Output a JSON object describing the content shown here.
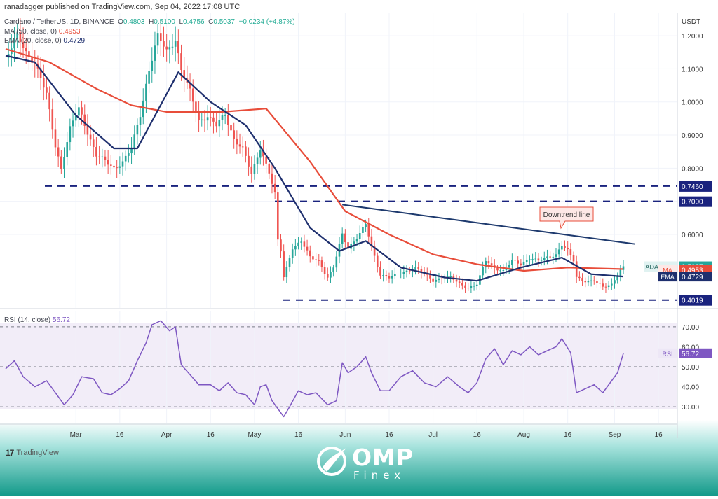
{
  "header": {
    "published": "ranadagger published on TradingView.com, Sep 04, 2022 17:08 UTC",
    "symbol_line": "Cardano / TetherUS, 1D, BINANCE",
    "ohlc": {
      "o_label": "O",
      "o": "0.4803",
      "h_label": "H",
      "h": "0.5100",
      "l_label": "L",
      "l": "0.4756",
      "c_label": "C",
      "c": "0.5037",
      "change": "+0.0234 (+4.87%)"
    }
  },
  "indicators": {
    "ma": {
      "label": "MA (50, close, 0)",
      "value": "0.4953",
      "color": "#e84d3a"
    },
    "ema": {
      "label": "EMA (20, close, 0)",
      "value": "0.4729",
      "color": "#1e2f6e"
    },
    "rsi": {
      "label": "RSI (14, close)",
      "value": "56.72",
      "color": "#7e57c2"
    }
  },
  "chart_data": [
    {
      "type": "candlestick",
      "currency": "USDT",
      "ylim": [
        0.378,
        1.27
      ],
      "y_ticks": [
        0.6,
        0.7,
        0.8,
        0.9,
        1.0,
        1.1,
        1.2
      ],
      "y_tick_labels": [
        "0.6000",
        "0.7000",
        "0.8000",
        "0.9000",
        "1.0000",
        "1.1000",
        "1.2000"
      ],
      "x_ticks": [
        {
          "date": "2022-03-01",
          "label": "Mar"
        },
        {
          "date": "2022-03-16",
          "label": "16"
        },
        {
          "date": "2022-04-01",
          "label": "Apr"
        },
        {
          "date": "2022-04-16",
          "label": "16"
        },
        {
          "date": "2022-05-01",
          "label": "May"
        },
        {
          "date": "2022-05-16",
          "label": "16"
        },
        {
          "date": "2022-06-01",
          "label": "Jun"
        },
        {
          "date": "2022-06-16",
          "label": "16"
        },
        {
          "date": "2022-07-01",
          "label": "Jul"
        },
        {
          "date": "2022-07-16",
          "label": "16"
        },
        {
          "date": "2022-08-01",
          "label": "Aug"
        },
        {
          "date": "2022-08-16",
          "label": "16"
        },
        {
          "date": "2022-09-01",
          "label": "Sep"
        },
        {
          "date": "2022-09-16",
          "label": "16"
        }
      ],
      "close_path": [
        [
          "2022-02-05",
          1.13
        ],
        [
          "2022-02-09",
          1.2
        ],
        [
          "2022-02-12",
          1.15
        ],
        [
          "2022-02-15",
          1.12
        ],
        [
          "2022-02-19",
          1.02
        ],
        [
          "2022-02-22",
          0.87
        ],
        [
          "2022-02-24",
          0.8
        ],
        [
          "2022-02-27",
          0.92
        ],
        [
          "2022-03-02",
          0.98
        ],
        [
          "2022-03-05",
          0.91
        ],
        [
          "2022-03-08",
          0.84
        ],
        [
          "2022-03-11",
          0.82
        ],
        [
          "2022-03-14",
          0.8
        ],
        [
          "2022-03-17",
          0.82
        ],
        [
          "2022-03-20",
          0.86
        ],
        [
          "2022-03-23",
          0.96
        ],
        [
          "2022-03-26",
          1.1
        ],
        [
          "2022-03-29",
          1.2
        ],
        [
          "2022-04-01",
          1.15
        ],
        [
          "2022-04-04",
          1.19
        ],
        [
          "2022-04-06",
          1.1
        ],
        [
          "2022-04-09",
          1.03
        ],
        [
          "2022-04-12",
          0.94
        ],
        [
          "2022-04-15",
          0.96
        ],
        [
          "2022-04-18",
          0.93
        ],
        [
          "2022-04-21",
          0.96
        ],
        [
          "2022-04-24",
          0.89
        ],
        [
          "2022-04-27",
          0.86
        ],
        [
          "2022-04-30",
          0.78
        ],
        [
          "2022-05-03",
          0.86
        ],
        [
          "2022-05-06",
          0.79
        ],
        [
          "2022-05-08",
          0.72
        ],
        [
          "2022-05-09",
          0.58
        ],
        [
          "2022-05-10",
          0.55
        ],
        [
          "2022-05-11",
          0.47
        ],
        [
          "2022-05-12",
          0.5
        ],
        [
          "2022-05-14",
          0.56
        ],
        [
          "2022-05-17",
          0.58
        ],
        [
          "2022-05-20",
          0.53
        ],
        [
          "2022-05-23",
          0.52
        ],
        [
          "2022-05-26",
          0.47
        ],
        [
          "2022-05-28",
          0.5
        ],
        [
          "2022-05-31",
          0.6
        ],
        [
          "2022-06-02",
          0.56
        ],
        [
          "2022-06-05",
          0.59
        ],
        [
          "2022-06-08",
          0.63
        ],
        [
          "2022-06-10",
          0.56
        ],
        [
          "2022-06-13",
          0.48
        ],
        [
          "2022-06-16",
          0.47
        ],
        [
          "2022-06-19",
          0.48
        ],
        [
          "2022-06-22",
          0.49
        ],
        [
          "2022-06-25",
          0.5
        ],
        [
          "2022-06-28",
          0.48
        ],
        [
          "2022-07-01",
          0.46
        ],
        [
          "2022-07-04",
          0.47
        ],
        [
          "2022-07-07",
          0.47
        ],
        [
          "2022-07-10",
          0.45
        ],
        [
          "2022-07-13",
          0.44
        ],
        [
          "2022-07-16",
          0.45
        ],
        [
          "2022-07-19",
          0.52
        ],
        [
          "2022-07-22",
          0.5
        ],
        [
          "2022-07-25",
          0.49
        ],
        [
          "2022-07-28",
          0.52
        ],
        [
          "2022-07-31",
          0.51
        ],
        [
          "2022-08-03",
          0.53
        ],
        [
          "2022-08-06",
          0.52
        ],
        [
          "2022-08-09",
          0.53
        ],
        [
          "2022-08-12",
          0.54
        ],
        [
          "2022-08-14",
          0.57
        ],
        [
          "2022-08-16",
          0.55
        ],
        [
          "2022-08-18",
          0.52
        ],
        [
          "2022-08-19",
          0.47
        ],
        [
          "2022-08-22",
          0.46
        ],
        [
          "2022-08-25",
          0.46
        ],
        [
          "2022-08-28",
          0.44
        ],
        [
          "2022-08-31",
          0.45
        ],
        [
          "2022-09-02",
          0.48
        ],
        [
          "2022-09-04",
          0.5037
        ]
      ],
      "ma50_path": [
        [
          "2022-02-05",
          1.16
        ],
        [
          "2022-02-20",
          1.12
        ],
        [
          "2022-03-08",
          1.04
        ],
        [
          "2022-03-20",
          0.99
        ],
        [
          "2022-04-01",
          0.97
        ],
        [
          "2022-04-20",
          0.97
        ],
        [
          "2022-05-05",
          0.98
        ],
        [
          "2022-05-20",
          0.82
        ],
        [
          "2022-06-01",
          0.67
        ],
        [
          "2022-06-16",
          0.6
        ],
        [
          "2022-07-01",
          0.54
        ],
        [
          "2022-07-16",
          0.51
        ],
        [
          "2022-08-01",
          0.49
        ],
        [
          "2022-08-16",
          0.5
        ],
        [
          "2022-09-04",
          0.4953
        ]
      ],
      "ema20_path": [
        [
          "2022-02-05",
          1.14
        ],
        [
          "2022-02-15",
          1.12
        ],
        [
          "2022-03-01",
          0.96
        ],
        [
          "2022-03-14",
          0.86
        ],
        [
          "2022-03-22",
          0.86
        ],
        [
          "2022-04-05",
          1.09
        ],
        [
          "2022-04-16",
          1.0
        ],
        [
          "2022-04-28",
          0.93
        ],
        [
          "2022-05-08",
          0.8
        ],
        [
          "2022-05-20",
          0.62
        ],
        [
          "2022-05-30",
          0.55
        ],
        [
          "2022-06-08",
          0.58
        ],
        [
          "2022-06-20",
          0.5
        ],
        [
          "2022-07-05",
          0.47
        ],
        [
          "2022-07-16",
          0.46
        ],
        [
          "2022-07-31",
          0.5
        ],
        [
          "2022-08-14",
          0.53
        ],
        [
          "2022-08-24",
          0.48
        ],
        [
          "2022-09-04",
          0.4729
        ]
      ],
      "horizontal_levels": [
        {
          "value": 0.746,
          "label": "0.7460"
        },
        {
          "value": 0.7,
          "label": "0.7000"
        },
        {
          "value": 0.4019,
          "label": "0.4019"
        }
      ],
      "downtrend_line": {
        "start": [
          "2022-05-31",
          0.69
        ],
        "end": [
          "2022-09-08",
          0.571
        ],
        "annotation": "Downtrend line"
      },
      "last_price": {
        "symbol": "ADAUSDT",
        "value": "0.5037",
        "countdown": "06:51:03"
      },
      "ma_tag": {
        "name": "MA",
        "value": "0.4953"
      },
      "ema_tag": {
        "name": "EMA",
        "value": "0.4729"
      }
    },
    {
      "type": "line",
      "name": "RSI",
      "ylim": [
        22,
        78
      ],
      "y_ticks": [
        30,
        40,
        50,
        60,
        70
      ],
      "y_tick_labels": [
        "30.00",
        "40.00",
        "50.00",
        "60.00",
        "70.00"
      ],
      "levels": [
        70,
        50,
        30
      ],
      "values": [
        [
          "2022-02-05",
          49
        ],
        [
          "2022-02-08",
          53
        ],
        [
          "2022-02-11",
          45
        ],
        [
          "2022-02-15",
          40
        ],
        [
          "2022-02-19",
          43
        ],
        [
          "2022-02-22",
          37
        ],
        [
          "2022-02-25",
          31
        ],
        [
          "2022-02-28",
          36
        ],
        [
          "2022-03-03",
          45
        ],
        [
          "2022-03-07",
          44
        ],
        [
          "2022-03-10",
          37
        ],
        [
          "2022-03-13",
          36
        ],
        [
          "2022-03-16",
          39
        ],
        [
          "2022-03-19",
          43
        ],
        [
          "2022-03-22",
          53
        ],
        [
          "2022-03-25",
          62
        ],
        [
          "2022-03-27",
          71
        ],
        [
          "2022-03-30",
          73
        ],
        [
          "2022-04-02",
          68
        ],
        [
          "2022-04-04",
          70
        ],
        [
          "2022-04-06",
          51
        ],
        [
          "2022-04-09",
          46
        ],
        [
          "2022-04-12",
          41
        ],
        [
          "2022-04-16",
          41
        ],
        [
          "2022-04-19",
          38
        ],
        [
          "2022-04-22",
          42
        ],
        [
          "2022-04-25",
          37
        ],
        [
          "2022-04-28",
          36
        ],
        [
          "2022-05-01",
          31
        ],
        [
          "2022-05-03",
          40
        ],
        [
          "2022-05-05",
          41
        ],
        [
          "2022-05-07",
          33
        ],
        [
          "2022-05-10",
          27
        ],
        [
          "2022-05-11",
          25
        ],
        [
          "2022-05-13",
          30
        ],
        [
          "2022-05-16",
          38
        ],
        [
          "2022-05-19",
          36
        ],
        [
          "2022-05-22",
          37
        ],
        [
          "2022-05-26",
          31
        ],
        [
          "2022-05-29",
          33
        ],
        [
          "2022-05-31",
          52
        ],
        [
          "2022-06-02",
          47
        ],
        [
          "2022-06-05",
          50
        ],
        [
          "2022-06-08",
          55
        ],
        [
          "2022-06-10",
          47
        ],
        [
          "2022-06-13",
          38
        ],
        [
          "2022-06-16",
          38
        ],
        [
          "2022-06-20",
          45
        ],
        [
          "2022-06-24",
          48
        ],
        [
          "2022-06-28",
          42
        ],
        [
          "2022-07-02",
          40
        ],
        [
          "2022-07-06",
          45
        ],
        [
          "2022-07-10",
          40
        ],
        [
          "2022-07-13",
          37
        ],
        [
          "2022-07-16",
          42
        ],
        [
          "2022-07-19",
          54
        ],
        [
          "2022-07-22",
          59
        ],
        [
          "2022-07-25",
          51
        ],
        [
          "2022-07-28",
          58
        ],
        [
          "2022-07-31",
          56
        ],
        [
          "2022-08-03",
          60
        ],
        [
          "2022-08-06",
          56
        ],
        [
          "2022-08-09",
          58
        ],
        [
          "2022-08-12",
          60
        ],
        [
          "2022-08-14",
          64
        ],
        [
          "2022-08-17",
          57
        ],
        [
          "2022-08-19",
          37
        ],
        [
          "2022-08-22",
          39
        ],
        [
          "2022-08-25",
          41
        ],
        [
          "2022-08-28",
          37
        ],
        [
          "2022-08-31",
          43
        ],
        [
          "2022-09-02",
          47
        ],
        [
          "2022-09-04",
          56.72
        ]
      ],
      "last_tag": {
        "name": "RSI",
        "value": "56.72"
      }
    }
  ],
  "footer": {
    "tradingview": "TradingView",
    "brand_name": "OMP",
    "brand_sub": "Finex"
  },
  "colors": {
    "up": "#26a69a",
    "down": "#ef5350",
    "ma": "#e84d3a",
    "ema": "#1e2f6e",
    "rsi": "#7e57c2",
    "levels": "#1a237e",
    "footer_gradient_start": "#a7e3dd",
    "footer_gradient_end": "#139a8a"
  }
}
